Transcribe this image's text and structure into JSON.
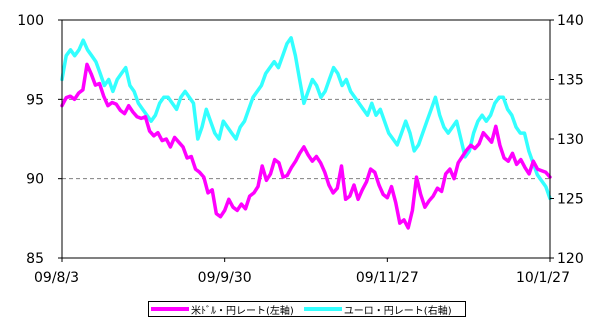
{
  "chart_data": {
    "type": "line",
    "x_ticks": [
      "09/8/3",
      "09/9/30",
      "09/11/27",
      "10/1/27"
    ],
    "y_left": {
      "range": [
        85,
        100
      ],
      "ticks": [
        "85",
        "90",
        "95",
        "100"
      ]
    },
    "y_right": {
      "range": [
        120,
        140
      ],
      "ticks": [
        "120",
        "125",
        "130",
        "135",
        "140"
      ]
    },
    "gridlines": [
      90,
      95
    ],
    "legend_position": "bottom",
    "series": [
      {
        "name": "米ﾄﾞﾙ・円レート(左軸)",
        "axis": "left",
        "color": "#ff00ff",
        "values": [
          94.6,
          95.1,
          95.2,
          95.0,
          95.4,
          95.6,
          97.2,
          96.6,
          95.9,
          96.0,
          95.2,
          94.6,
          94.8,
          94.7,
          94.3,
          94.1,
          94.6,
          94.2,
          93.9,
          93.8,
          93.9,
          93.0,
          92.7,
          92.9,
          92.4,
          92.5,
          92.0,
          92.6,
          92.3,
          92.0,
          91.3,
          91.4,
          90.6,
          90.4,
          90.1,
          89.1,
          89.3,
          87.8,
          87.6,
          88.0,
          88.7,
          88.2,
          88.0,
          88.4,
          88.1,
          88.9,
          89.1,
          89.5,
          90.8,
          89.9,
          90.3,
          91.2,
          91.0,
          90.1,
          90.2,
          90.7,
          91.1,
          91.6,
          92.0,
          91.5,
          91.1,
          91.4,
          91.0,
          90.4,
          89.6,
          89.1,
          89.4,
          90.8,
          88.7,
          88.9,
          89.6,
          88.7,
          89.3,
          89.8,
          90.6,
          90.4,
          89.6,
          89.0,
          88.8,
          89.5,
          88.5,
          87.2,
          87.4,
          86.9,
          88.0,
          90.1,
          89.0,
          88.2,
          88.6,
          88.9,
          89.4,
          89.2,
          90.3,
          90.6,
          90.0,
          91.0,
          91.4,
          91.8,
          92.1,
          91.9,
          92.2,
          92.9,
          92.6,
          92.3,
          93.3,
          92.1,
          91.3,
          91.1,
          91.6,
          90.9,
          91.2,
          90.7,
          90.3,
          91.1,
          90.6,
          90.5,
          90.4,
          90.1
        ]
      },
      {
        "name": "ユーロ・円レート(右軸)",
        "axis": "right",
        "color": "#33ffff",
        "values": [
          135.0,
          137.0,
          137.5,
          137.0,
          137.5,
          138.3,
          137.5,
          137.0,
          136.5,
          135.5,
          134.5,
          135.0,
          134.0,
          135.0,
          135.5,
          136.0,
          134.5,
          134.0,
          133.0,
          132.5,
          132.0,
          131.5,
          132.0,
          133.0,
          133.5,
          133.5,
          133.0,
          132.5,
          133.5,
          134.0,
          133.5,
          133.0,
          130.0,
          131.0,
          132.5,
          131.5,
          130.5,
          130.0,
          131.5,
          131.0,
          130.5,
          130.0,
          131.0,
          131.5,
          132.5,
          133.5,
          134.0,
          134.5,
          135.5,
          136.0,
          136.5,
          136.0,
          137.0,
          138.0,
          138.5,
          137.0,
          135.0,
          133.0,
          134.0,
          135.0,
          134.5,
          133.5,
          134.0,
          135.0,
          136.0,
          135.5,
          134.5,
          135.0,
          134.0,
          133.5,
          133.0,
          132.5,
          132.0,
          133.0,
          132.0,
          132.5,
          131.5,
          130.5,
          130.0,
          129.5,
          130.5,
          131.5,
          130.5,
          129.0,
          129.5,
          130.5,
          131.5,
          132.5,
          133.5,
          132.0,
          131.0,
          130.5,
          131.0,
          131.5,
          130.0,
          128.5,
          129.0,
          130.5,
          131.5,
          132.0,
          131.5,
          132.0,
          133.0,
          133.5,
          133.5,
          132.5,
          132.0,
          131.0,
          130.5,
          130.5,
          129.0,
          128.0,
          127.0,
          126.5,
          126.0,
          125.0
        ]
      }
    ]
  }
}
